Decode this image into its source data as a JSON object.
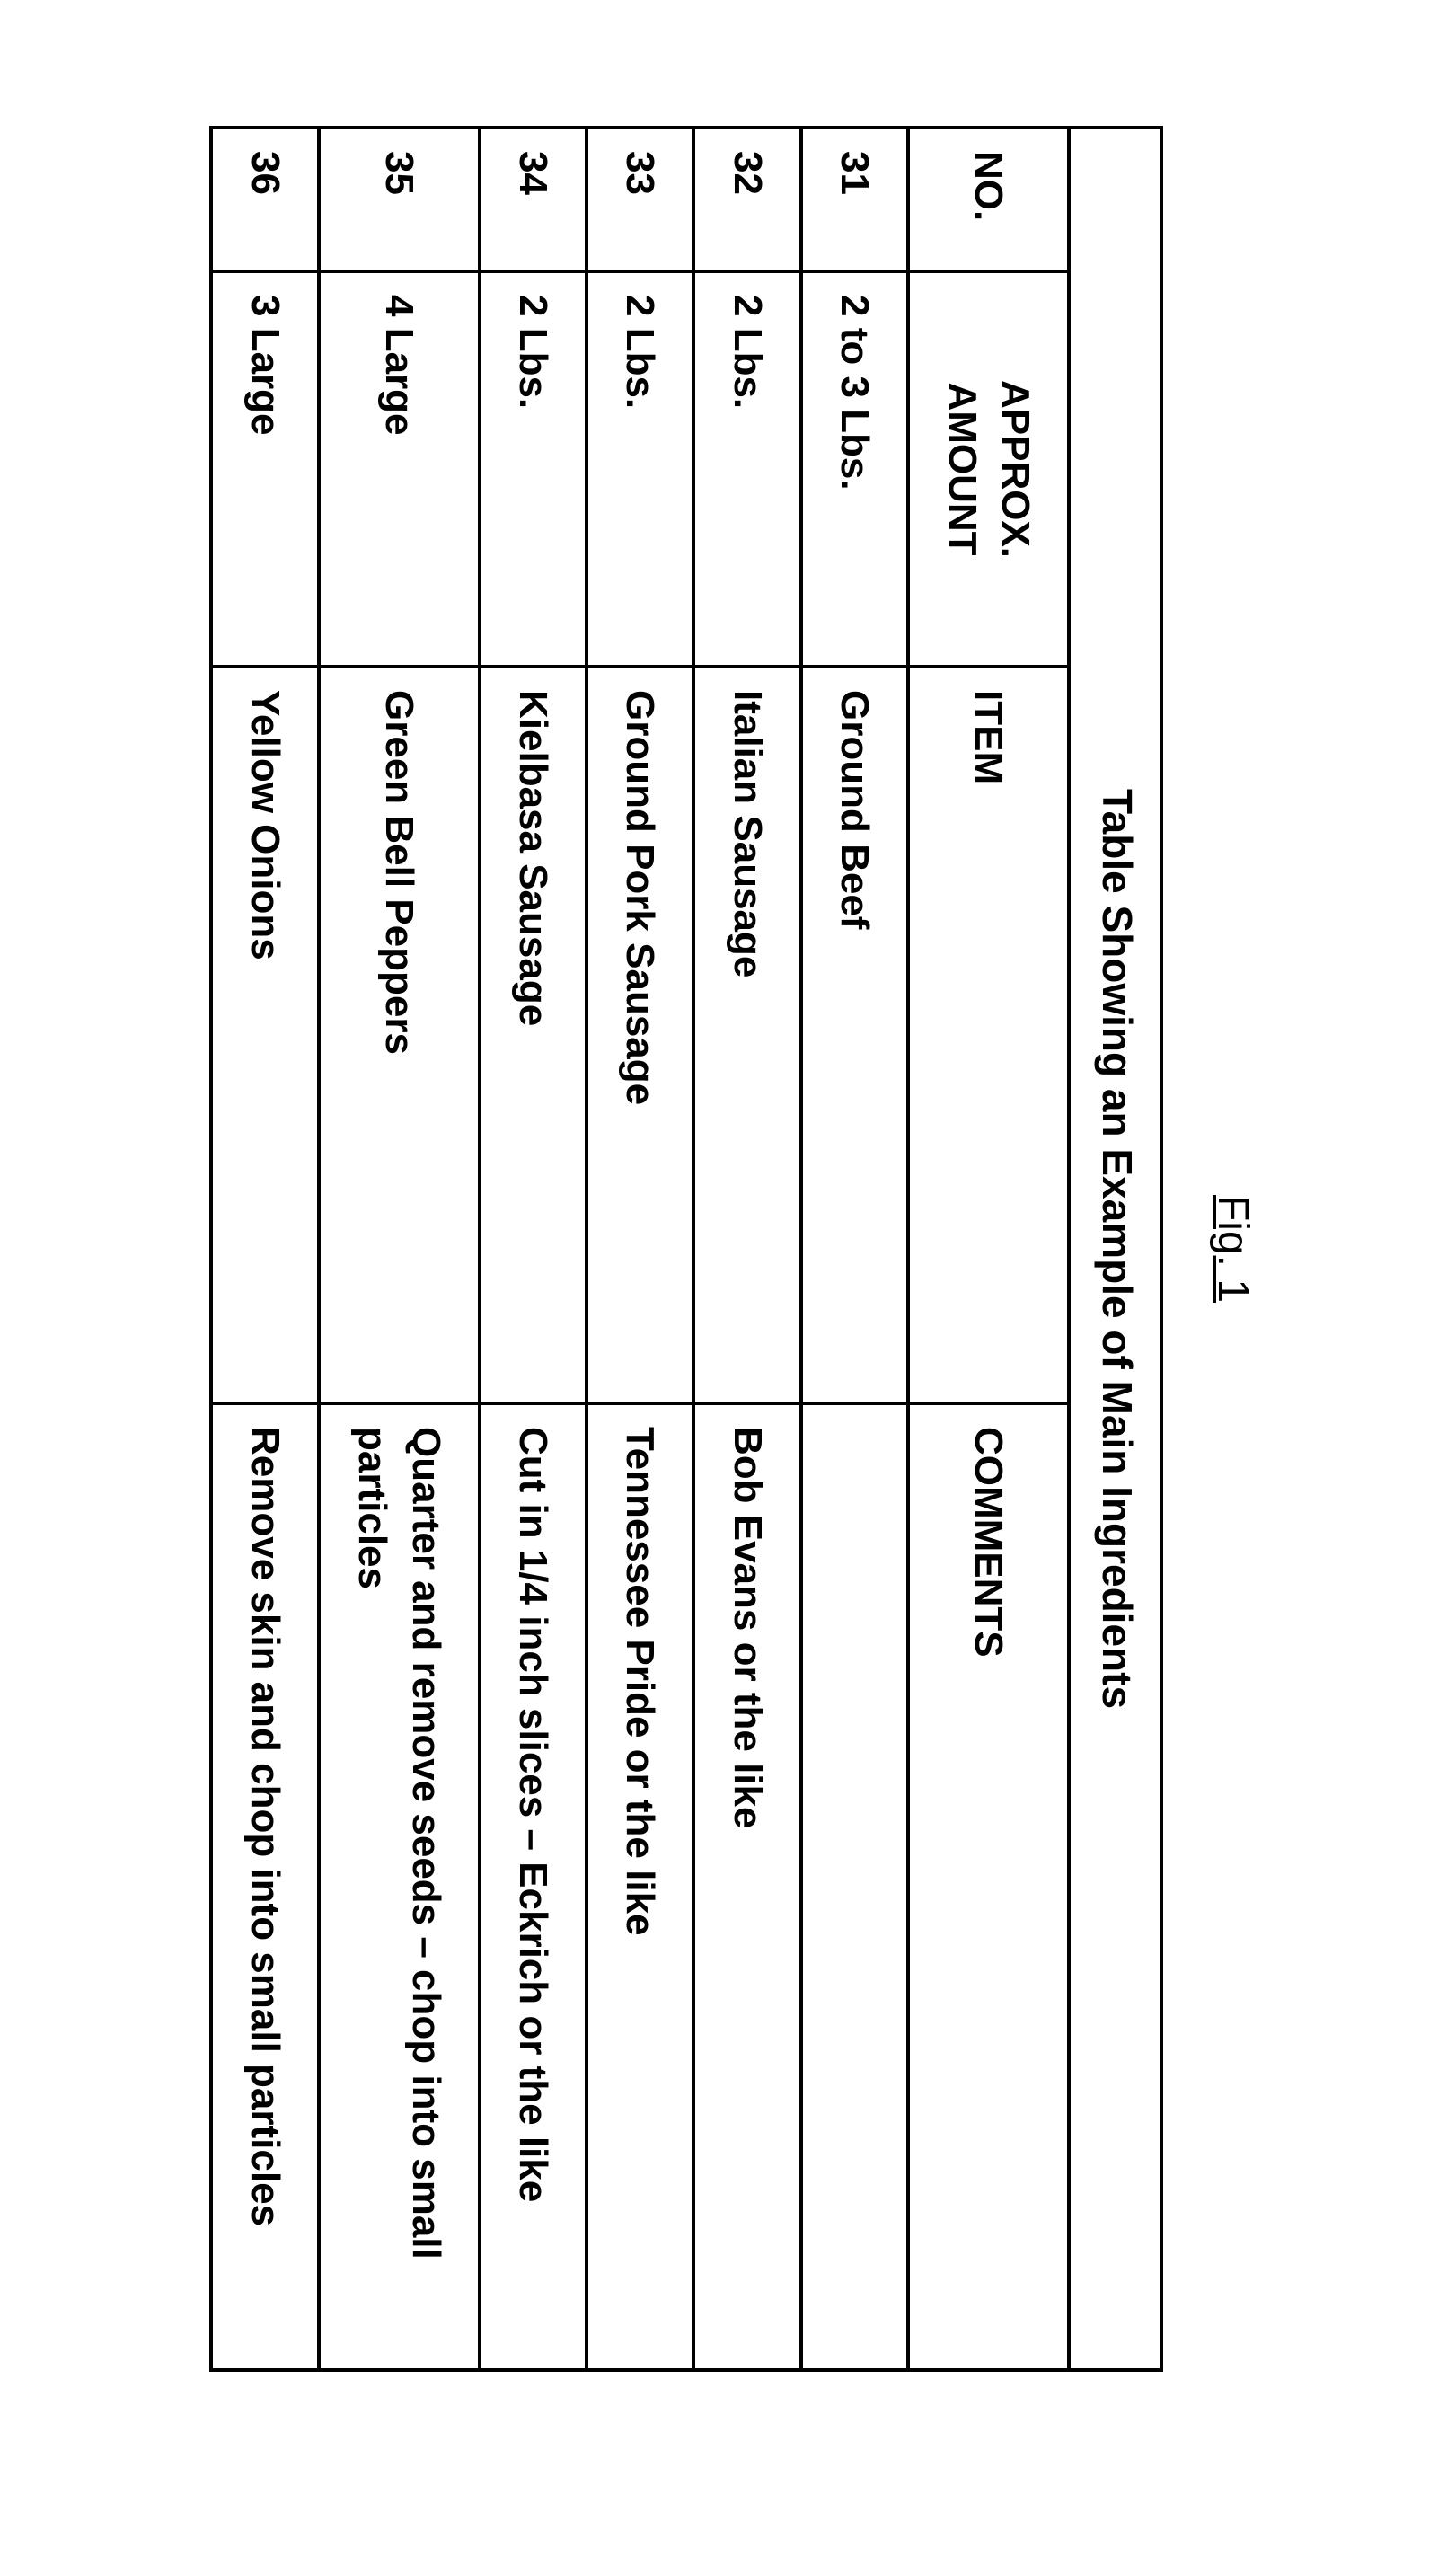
{
  "figure_label": "Fig. 1",
  "table": {
    "caption": "Table Showing an Example of Main Ingredients",
    "columns": [
      "NO.",
      "APPROX. AMOUNT",
      "ITEM",
      "COMMENTS"
    ],
    "rows": [
      {
        "no": "31",
        "amount": "2 to 3 Lbs.",
        "item": "Ground Beef",
        "comments": ""
      },
      {
        "no": "32",
        "amount": "2 Lbs.",
        "item": "Italian Sausage",
        "comments": "Bob Evans or the like"
      },
      {
        "no": "33",
        "amount": "2 Lbs.",
        "item": "Ground Pork Sausage",
        "comments": "Tennessee Pride or the like"
      },
      {
        "no": "34",
        "amount": "2 Lbs.",
        "item": "Kielbasa Sausage",
        "comments": "Cut in 1/4 inch slices – Eckrich or the like"
      },
      {
        "no": "35",
        "amount": "4 Large",
        "item": "Green Bell Peppers",
        "comments": "Quarter and remove seeds – chop into small particles"
      },
      {
        "no": "36",
        "amount": "3 Large",
        "item": "Yellow Onions",
        "comments": "Remove skin and chop into small particles"
      }
    ]
  }
}
